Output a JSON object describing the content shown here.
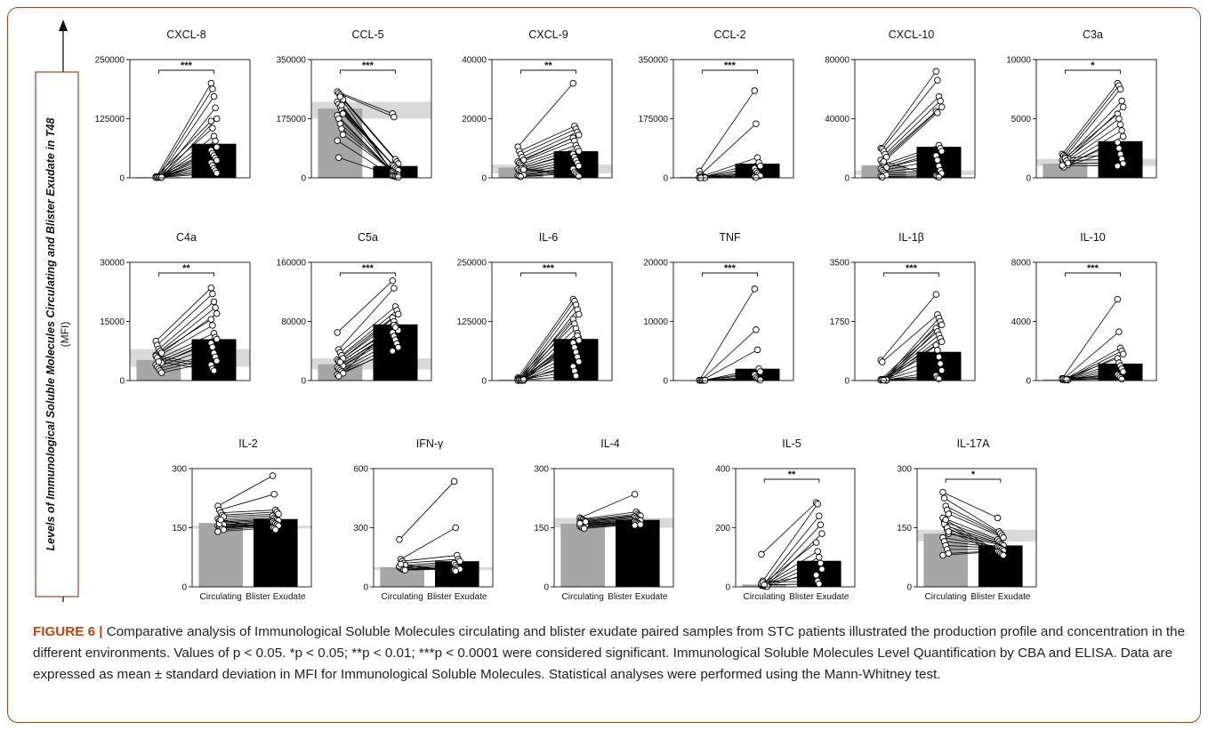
{
  "y_axis_label": {
    "main": "Levels of Immunological Soluble Molecules Circulating and Blister Exudate in T48",
    "unit": "(MFI)"
  },
  "caption": {
    "label": "FIGURE 6",
    "separator": "|",
    "text": "Comparative analysis of Immunological Soluble Molecules circulating and blister exudate paired samples from STC patients illustrated the production profile and concentration in the different environments. Values of p < 0.05. *p < 0.05; **p < 0.01; ***p < 0.0001 were considered significant. Immunological Soluble Molecules Level Quantification by CBA and ELISA. Data are expressed as mean ± standard deviation in MFI for Immunological Soluble Molecules. Statistical analyses were performed using the Mann-Whitney test."
  },
  "colors": {
    "circulating_bar": "#a6a6a6",
    "exudate_bar": "#000000",
    "reference_band": "#d9d9d9",
    "frame": "#8c4a2a",
    "caption_label": "#c1440e"
  },
  "chart_data": [
    {
      "type": "bar",
      "title": "CXCL-8",
      "categories": [
        "Circulating",
        "Blister Exudate"
      ],
      "ylim": [
        0,
        250000
      ],
      "yticks": [
        "0",
        "125000",
        "250000"
      ],
      "values": [
        1500,
        72000
      ],
      "band": null,
      "sig": "***",
      "circ_points": [
        1000,
        1500,
        2000,
        800,
        1200,
        2500,
        1800,
        900,
        1300,
        1100,
        1600,
        700,
        2200,
        1400,
        1900,
        1000,
        1200,
        1500,
        1700,
        1300
      ],
      "exud_points": [
        200000,
        188000,
        172000,
        148000,
        125000,
        120000,
        105000,
        88000,
        78000,
        65000,
        58000,
        52000,
        47000,
        42000,
        37000,
        32000,
        26000,
        20000,
        15000,
        10000
      ]
    },
    {
      "type": "bar",
      "title": "CCL-5",
      "categories": [
        "Circulating",
        "Blister Exudate"
      ],
      "ylim": [
        0,
        350000
      ],
      "yticks": [
        "0",
        "175000",
        "350000"
      ],
      "values": [
        205000,
        35000
      ],
      "band": [
        175000,
        225000
      ],
      "sig": "***",
      "circ_points": [
        255000,
        250000,
        245000,
        238000,
        232000,
        225000,
        218000,
        210000,
        200000,
        192000,
        185000,
        175000,
        160000,
        145000,
        128000,
        110000,
        60000,
        240000,
        215000,
        190000
      ],
      "exud_points": [
        190000,
        180000,
        55000,
        48000,
        42000,
        38000,
        35000,
        30000,
        26000,
        22000,
        18000,
        15000,
        12000,
        10000,
        8000,
        6000,
        5000,
        4000,
        3000,
        2000
      ]
    },
    {
      "type": "bar",
      "title": "CXCL-9",
      "categories": [
        "Circulating",
        "Blister Exudate"
      ],
      "ylim": [
        0,
        40000
      ],
      "yticks": [
        "0",
        "20000",
        "40000"
      ],
      "values": [
        3500,
        9000
      ],
      "band": [
        1500,
        4500
      ],
      "sig": "**",
      "circ_points": [
        10500,
        9000,
        8000,
        7000,
        6000,
        5500,
        5000,
        4500,
        4000,
        3500,
        3000,
        2500,
        2000,
        1500,
        1000,
        800,
        600,
        400,
        3200,
        2800
      ],
      "exud_points": [
        32000,
        17500,
        16500,
        15500,
        14500,
        13500,
        12500,
        11000,
        10000,
        9000,
        8000,
        7000,
        6000,
        5000,
        4000,
        3000,
        2000,
        1500,
        1000,
        500
      ]
    },
    {
      "type": "bar",
      "title": "CCL-2",
      "categories": [
        "Circulating",
        "Blister Exudate"
      ],
      "ylim": [
        0,
        350000
      ],
      "yticks": [
        "0",
        "175000",
        "350000"
      ],
      "values": [
        3000,
        42000
      ],
      "band": null,
      "sig": "***",
      "circ_points": [
        20000,
        10000,
        5000,
        3000,
        2000,
        1500,
        1000,
        800,
        600,
        400,
        300,
        200
      ],
      "exud_points": [
        258000,
        160000,
        60000,
        45000,
        35000,
        28000,
        20000,
        15000,
        10000,
        6000,
        3000,
        1000
      ]
    },
    {
      "type": "bar",
      "title": "CXCL-10",
      "categories": [
        "Circulating",
        "Blister Exudate"
      ],
      "ylim": [
        0,
        80000
      ],
      "yticks": [
        "0",
        "40000",
        "80000"
      ],
      "values": [
        8500,
        21000
      ],
      "band": [
        2000,
        5000
      ],
      "sig": "",
      "circ_points": [
        20000,
        19500,
        18000,
        16000,
        14000,
        12000,
        10000,
        9000,
        8000,
        7000,
        6000,
        5000,
        4000,
        3000,
        2000,
        1000,
        500,
        11000
      ],
      "exud_points": [
        72000,
        66000,
        55000,
        52000,
        48000,
        45000,
        44000,
        22000,
        20000,
        18000,
        15000,
        12000,
        8000,
        5000,
        3000,
        1500,
        800,
        500
      ]
    },
    {
      "type": "bar",
      "title": "C3a",
      "categories": [
        "Circulating",
        "Blister Exudate"
      ],
      "ylim": [
        0,
        10000
      ],
      "yticks": [
        "0",
        "5000",
        "10000"
      ],
      "values": [
        1200,
        3100
      ],
      "band": [
        1000,
        1600
      ],
      "sig": "*",
      "circ_points": [
        2000,
        1900,
        1800,
        1700,
        1600,
        1500,
        1400,
        1300,
        1200,
        1100,
        1000,
        900,
        1650,
        1450,
        1250,
        1050
      ],
      "exud_points": [
        8000,
        7800,
        7500,
        6500,
        6000,
        5400,
        5000,
        4500,
        4000,
        3500,
        3000,
        2500,
        2000,
        1600,
        1200,
        1000
      ]
    },
    {
      "type": "bar",
      "title": "C4a",
      "categories": [
        "Circulating",
        "Blister Exudate"
      ],
      "ylim": [
        0,
        30000
      ],
      "yticks": [
        "0",
        "15000",
        "30000"
      ],
      "values": [
        5200,
        10500
      ],
      "band": [
        3500,
        8000
      ],
      "sig": "**",
      "circ_points": [
        10000,
        9000,
        8000,
        7500,
        7000,
        6500,
        6000,
        5500,
        5000,
        4500,
        4000,
        3500,
        3000,
        2500,
        2000,
        6200,
        5800,
        4800
      ],
      "exud_points": [
        23500,
        22000,
        20000,
        18500,
        17000,
        15500,
        14000,
        12000,
        11000,
        10500,
        9500,
        8500,
        7000,
        6000,
        5000,
        4000,
        3000,
        2500
      ]
    },
    {
      "type": "bar",
      "title": "C5a",
      "categories": [
        "Circulating",
        "Blister Exudate"
      ],
      "ylim": [
        0,
        160000
      ],
      "yticks": [
        "0",
        "80000",
        "160000"
      ],
      "values": [
        22000,
        76000
      ],
      "band": [
        15000,
        30000
      ],
      "sig": "***",
      "circ_points": [
        65000,
        42000,
        38000,
        34000,
        30000,
        28000,
        26000,
        24000,
        22000,
        20000,
        18000,
        16000,
        14000,
        12000,
        10000,
        8000,
        6000,
        25000
      ],
      "exud_points": [
        135000,
        125000,
        100000,
        95000,
        90000,
        85000,
        80000,
        75000,
        70000,
        68000,
        65000,
        60000,
        55000,
        50000,
        45000,
        40000,
        75000,
        72000
      ]
    },
    {
      "type": "bar",
      "title": "IL-6",
      "categories": [
        "Circulating",
        "Blister Exudate"
      ],
      "ylim": [
        0,
        250000
      ],
      "yticks": [
        "0",
        "125000",
        "250000"
      ],
      "values": [
        2000,
        88000
      ],
      "band": null,
      "sig": "***",
      "circ_points": [
        6000,
        5000,
        4000,
        3500,
        3000,
        2500,
        2000,
        1500,
        1000,
        800,
        600,
        500,
        400,
        300,
        200,
        100,
        1200,
        900,
        700,
        1800
      ],
      "exud_points": [
        172000,
        168000,
        160000,
        150000,
        140000,
        130000,
        120000,
        110000,
        100000,
        90000,
        80000,
        70000,
        60000,
        50000,
        40000,
        30000,
        20000,
        10000,
        95000,
        85000
      ]
    },
    {
      "type": "bar",
      "title": "TNF",
      "categories": [
        "Circulating",
        "Blister Exudate"
      ],
      "ylim": [
        0,
        20000
      ],
      "yticks": [
        "0",
        "10000",
        "20000"
      ],
      "values": [
        50,
        2000
      ],
      "band": null,
      "sig": "***",
      "circ_points": [
        50,
        40,
        60,
        30,
        70,
        45,
        55,
        35,
        65,
        50
      ],
      "exud_points": [
        15500,
        8600,
        5200,
        2000,
        1500,
        1000,
        600,
        400,
        200,
        100
      ]
    },
    {
      "type": "bar",
      "title": "IL-1β",
      "categories": [
        "Circulating",
        "Blister Exudate"
      ],
      "ylim": [
        0,
        3500
      ],
      "yticks": [
        "0",
        "1750",
        "3500"
      ],
      "values": [
        20,
        850
      ],
      "band": null,
      "sig": "***",
      "circ_points": [
        600,
        550,
        20,
        15,
        10,
        30,
        25,
        18,
        12,
        8,
        22,
        35,
        40,
        28,
        16,
        14,
        20,
        10
      ],
      "exud_points": [
        2550,
        1950,
        1850,
        1750,
        1650,
        1550,
        1450,
        1350,
        1250,
        1150,
        1050,
        900,
        700,
        500,
        300,
        150,
        80,
        50
      ]
    },
    {
      "type": "bar",
      "title": "IL-10",
      "categories": [
        "Circulating",
        "Blister Exudate"
      ],
      "ylim": [
        0,
        8000
      ],
      "yticks": [
        "0",
        "4000",
        "8000"
      ],
      "values": [
        80,
        1150
      ],
      "band": null,
      "sig": "***",
      "circ_points": [
        150,
        120,
        100,
        90,
        80,
        70,
        60,
        50,
        40,
        30,
        110,
        130,
        85,
        65
      ],
      "exud_points": [
        5500,
        3300,
        2200,
        2000,
        1800,
        1500,
        1200,
        1000,
        800,
        600,
        400,
        300,
        200,
        100
      ]
    },
    {
      "type": "bar",
      "title": "IL-2",
      "categories": [
        "Circulating",
        "Blister Exudate"
      ],
      "ylim": [
        0,
        300
      ],
      "yticks": [
        "0",
        "150",
        "300"
      ],
      "values": [
        162,
        172
      ],
      "band": [
        148,
        155
      ],
      "sig": "",
      "circ_points": [
        205,
        195,
        188,
        182,
        178,
        172,
        168,
        165,
        162,
        158,
        155,
        152,
        150,
        148,
        145,
        140,
        160,
        170
      ],
      "exud_points": [
        282,
        235,
        195,
        190,
        185,
        180,
        175,
        172,
        170,
        168,
        165,
        162,
        160,
        158,
        155,
        150,
        148,
        145
      ]
    },
    {
      "type": "bar",
      "title": "IFN-γ",
      "categories": [
        "Circulating",
        "Blister Exudate"
      ],
      "ylim": [
        0,
        600
      ],
      "yticks": [
        "0",
        "300",
        "600"
      ],
      "values": [
        100,
        130
      ],
      "band": [
        85,
        100
      ],
      "sig": "",
      "circ_points": [
        240,
        140,
        130,
        120,
        110,
        100,
        95,
        90,
        88,
        85,
        105,
        115
      ],
      "exud_points": [
        535,
        300,
        160,
        140,
        130,
        120,
        110,
        100,
        95,
        90,
        85,
        80
      ]
    },
    {
      "type": "bar",
      "title": "IL-4",
      "categories": [
        "Circulating",
        "Blister Exudate"
      ],
      "ylim": [
        0,
        300
      ],
      "yticks": [
        "0",
        "150",
        "300"
      ],
      "values": [
        160,
        170
      ],
      "band": [
        150,
        175
      ],
      "sig": "",
      "circ_points": [
        175,
        172,
        170,
        168,
        166,
        164,
        162,
        160,
        158,
        156,
        154,
        152,
        150,
        148,
        165,
        161
      ],
      "exud_points": [
        235,
        190,
        185,
        182,
        180,
        178,
        175,
        172,
        170,
        168,
        166,
        164,
        162,
        160,
        158,
        156
      ]
    },
    {
      "type": "bar",
      "title": "IL-5",
      "categories": [
        "Circulating",
        "Blister Exudate"
      ],
      "ylim": [
        0,
        400
      ],
      "yticks": [
        "0",
        "200",
        "400"
      ],
      "values": [
        8,
        88
      ],
      "band": null,
      "sig": "**",
      "circ_points": [
        110,
        20,
        10,
        8,
        6,
        5,
        4,
        3,
        2,
        1,
        12,
        15,
        7
      ],
      "exud_points": [
        285,
        280,
        240,
        210,
        180,
        150,
        120,
        100,
        80,
        60,
        40,
        20,
        10
      ]
    },
    {
      "type": "bar",
      "title": "IL-17A",
      "categories": [
        "Circulating",
        "Blister Exudate"
      ],
      "ylim": [
        0,
        300
      ],
      "yticks": [
        "0",
        "150",
        "300"
      ],
      "values": [
        135,
        105
      ],
      "band": [
        115,
        145
      ],
      "sig": "*",
      "circ_points": [
        240,
        225,
        205,
        195,
        185,
        175,
        165,
        155,
        145,
        135,
        125,
        115,
        105,
        95,
        85,
        80,
        160,
        170,
        150,
        140
      ],
      "exud_points": [
        175,
        140,
        135,
        130,
        125,
        120,
        115,
        110,
        108,
        105,
        102,
        100,
        98,
        95,
        92,
        90,
        88,
        85,
        82,
        80
      ]
    }
  ]
}
